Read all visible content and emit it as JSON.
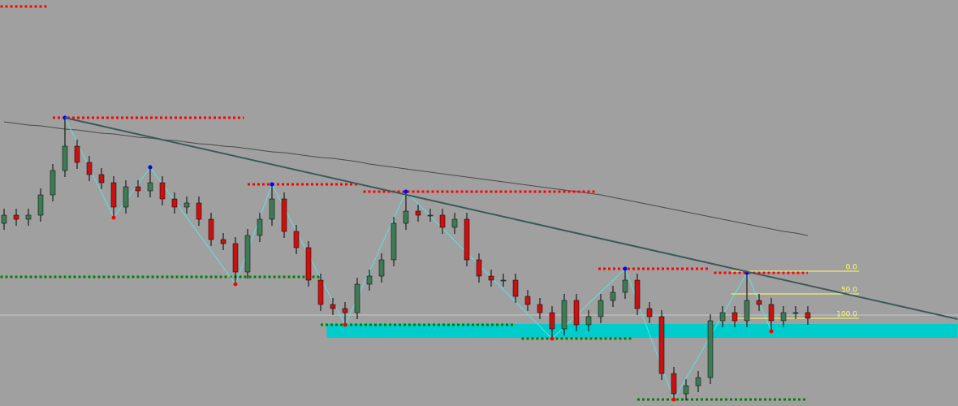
{
  "chart_data": {
    "type": "candlestick",
    "ylim": [
      0,
      500
    ],
    "open": [
      225,
      235,
      230,
      235,
      260,
      290,
      320,
      300,
      285,
      275,
      245,
      270,
      265,
      275,
      255,
      245,
      250,
      230,
      205,
      200,
      165,
      210,
      230,
      255,
      215,
      195,
      155,
      125,
      120,
      115,
      150,
      160,
      180,
      225,
      240,
      235,
      235,
      220,
      230,
      180,
      160,
      155,
      155,
      135,
      125,
      115,
      95,
      130,
      100,
      110,
      130,
      140,
      155,
      120,
      110,
      40,
      15,
      25,
      35,
      105,
      115,
      105,
      130,
      125,
      105,
      115,
      115
    ],
    "high": [
      243,
      243,
      243,
      268,
      298,
      355,
      328,
      308,
      293,
      283,
      278,
      278,
      294,
      283,
      263,
      258,
      258,
      238,
      213,
      208,
      218,
      238,
      273,
      263,
      223,
      203,
      163,
      133,
      128,
      158,
      168,
      188,
      233,
      264,
      248,
      243,
      243,
      238,
      238,
      188,
      168,
      163,
      163,
      143,
      133,
      123,
      138,
      138,
      118,
      138,
      148,
      169,
      163,
      128,
      118,
      48,
      33,
      43,
      113,
      123,
      123,
      164,
      138,
      133,
      123,
      123,
      123
    ],
    "low": [
      217,
      222,
      222,
      227,
      252,
      282,
      292,
      277,
      267,
      232,
      237,
      257,
      257,
      247,
      237,
      237,
      222,
      197,
      192,
      150,
      157,
      202,
      222,
      207,
      187,
      147,
      117,
      112,
      100,
      107,
      142,
      152,
      172,
      217,
      227,
      227,
      212,
      212,
      172,
      152,
      147,
      147,
      127,
      117,
      107,
      83,
      87,
      92,
      92,
      102,
      122,
      132,
      112,
      102,
      32,
      8,
      7,
      17,
      27,
      97,
      97,
      97,
      117,
      92,
      97,
      107,
      100
    ],
    "close": [
      235,
      230,
      235,
      260,
      290,
      320,
      300,
      285,
      275,
      245,
      270,
      265,
      275,
      255,
      245,
      250,
      230,
      205,
      200,
      165,
      210,
      230,
      255,
      215,
      195,
      155,
      125,
      120,
      115,
      150,
      160,
      180,
      225,
      240,
      235,
      235,
      220,
      230,
      180,
      160,
      155,
      155,
      135,
      125,
      115,
      95,
      130,
      100,
      110,
      130,
      140,
      155,
      120,
      110,
      40,
      15,
      25,
      35,
      105,
      115,
      105,
      130,
      125,
      105,
      115,
      115,
      108
    ],
    "up_color": "#3d7a55",
    "down_color": "#cc1010",
    "moving_average": {
      "color": "#4a4a4a",
      "values": [
        350,
        348,
        346,
        345,
        343,
        341,
        340,
        338,
        336,
        335,
        333,
        331,
        330,
        328,
        327,
        325,
        323,
        322,
        320,
        319,
        317,
        315,
        313,
        312,
        310,
        308,
        306,
        305,
        303,
        301,
        298,
        296,
        294,
        292,
        290,
        288,
        286,
        284,
        282,
        280,
        278,
        276,
        274,
        272,
        270,
        268,
        266,
        264,
        262,
        260,
        257,
        254,
        251,
        248,
        245,
        242,
        239,
        236,
        233,
        230,
        227,
        224,
        221,
        218,
        215,
        213,
        210
      ]
    },
    "trendline": {
      "color": "#3a5a5a",
      "x": [
        5,
        78.3
      ],
      "y": [
        355,
        107
      ]
    },
    "zigzag": {
      "color": "#5fe0e0",
      "x": [
        5,
        9,
        12,
        19,
        22,
        28,
        33,
        45,
        51,
        55,
        61,
        63
      ],
      "y": [
        355,
        232,
        294,
        150,
        273,
        100,
        264,
        83,
        169,
        8,
        164,
        92
      ]
    },
    "levels": [
      {
        "value": 492,
        "x": [
          -0.3,
          3.7
        ],
        "color": "#ff0000"
      },
      {
        "value": 355,
        "x": [
          4,
          19.7
        ],
        "color": "#ff0000"
      },
      {
        "value": 273,
        "x": [
          20,
          29
        ],
        "color": "#ff0000"
      },
      {
        "value": 264,
        "x": [
          29.5,
          48.5
        ],
        "color": "#ff0000"
      },
      {
        "value": 169,
        "x": [
          48.8,
          58
        ],
        "color": "#ff0000"
      },
      {
        "value": 164,
        "x": [
          58.3,
          66
        ],
        "color": "#ff0000"
      },
      {
        "value": 159,
        "x": [
          -0.3,
          26
        ],
        "color": "#008000"
      },
      {
        "value": 100,
        "x": [
          26,
          42
        ],
        "color": "#008000"
      },
      {
        "value": 83,
        "x": [
          42.5,
          51.7
        ],
        "color": "#008000"
      },
      {
        "value": 8,
        "x": [
          52,
          66
        ],
        "color": "#008000"
      }
    ],
    "price_line": 112,
    "zone": {
      "y": [
        84,
        101
      ],
      "x": [
        26.5,
        78.3
      ],
      "color": "#00cccc"
    },
    "fib": {
      "color": "#ffff66",
      "x": [
        59.7,
        70.2
      ],
      "prices": [
        166,
        138,
        108
      ],
      "labels": [
        {
          "value": 0,
          "label": "0.0"
        },
        {
          "value": 50,
          "label": "50.0"
        },
        {
          "value": 100,
          "label": "100.0"
        }
      ]
    }
  }
}
